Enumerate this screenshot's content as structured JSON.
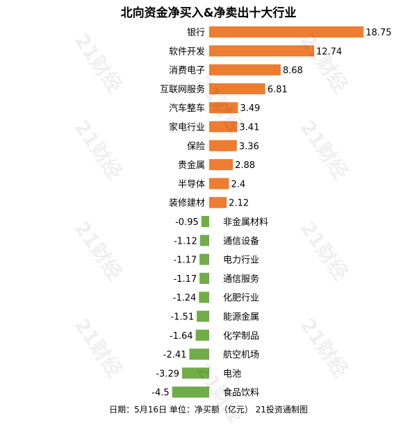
{
  "title": "北向资金净买入&净卖出十大行业",
  "footer": "日期：5月16日 单位：净买额（亿元） 21投资通制图",
  "watermark": "21财经",
  "colors": {
    "positive": "#ed7d31",
    "negative": "#70ad47",
    "text": "#000000"
  },
  "chart_data": {
    "type": "bar",
    "orientation": "horizontal",
    "title": "北向资金净买入&净卖出十大行业",
    "unit": "净买额（亿元）",
    "categories": [
      "银行",
      "软件开发",
      "消费电子",
      "互联网服务",
      "汽车整车",
      "家电行业",
      "保险",
      "贵金属",
      "半导体",
      "装修建材",
      "非金属材料",
      "通信设备",
      "电力行业",
      "通信服务",
      "化肥行业",
      "能源金属",
      "化学制品",
      "航空机场",
      "电池",
      "食品饮料"
    ],
    "values": [
      18.75,
      12.74,
      8.68,
      6.81,
      3.49,
      3.41,
      3.36,
      2.88,
      2.4,
      2.12,
      -0.95,
      -1.12,
      -1.17,
      -1.17,
      -1.24,
      -1.51,
      -1.64,
      -2.41,
      -3.29,
      -4.5
    ],
    "value_labels": [
      "18.75",
      "12.74",
      "8.68",
      "6.81",
      "3.49",
      "3.41",
      "3.36",
      "2.88",
      "2.4",
      "2.12",
      "-0.95",
      "-1.12",
      "-1.17",
      "-1.17",
      "-1.24",
      "-1.51",
      "-1.64",
      "-2.41",
      "-3.29",
      "-4.5"
    ],
    "xlim": [
      -4.5,
      18.75
    ],
    "grid": false,
    "legend": "none"
  }
}
